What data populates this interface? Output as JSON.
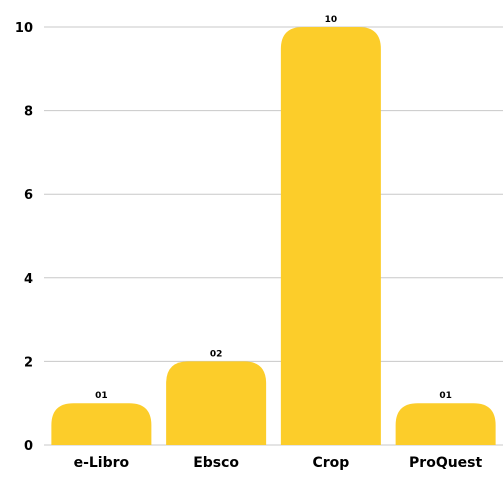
{
  "chart_data": {
    "type": "bar",
    "title": "",
    "xlabel": "",
    "ylabel": "",
    "categories": [
      "e-Libro",
      "Ebsco",
      "Crop",
      "ProQuest"
    ],
    "values": [
      1,
      2,
      10,
      1
    ],
    "data_labels": [
      "01",
      "02",
      "10",
      "01"
    ],
    "ylim": [
      0,
      10
    ],
    "yticks": [
      0,
      2,
      4,
      6,
      8,
      10
    ],
    "ytick_labels": [
      "0",
      "2",
      "4",
      "6",
      "8",
      "10"
    ],
    "grid": true,
    "legend": "none",
    "bar_color": "#FCCD2A"
  }
}
